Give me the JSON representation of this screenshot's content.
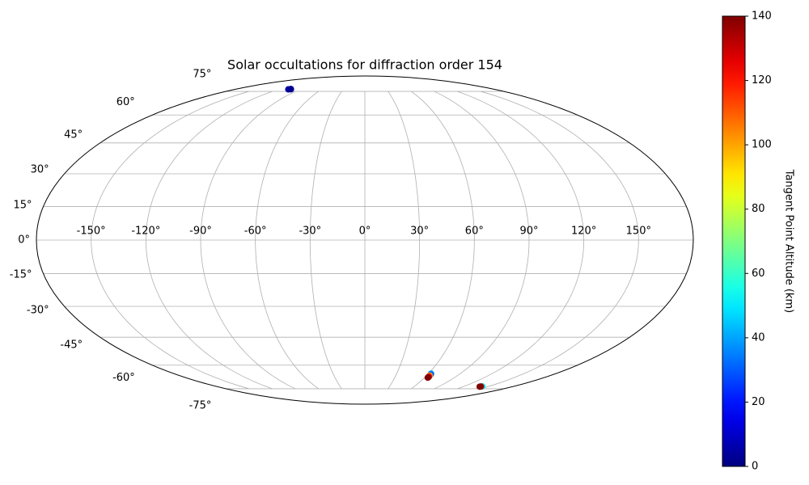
{
  "chart_data": {
    "type": "scatter",
    "projection": "mollweide",
    "title": "Solar occultations for diffraction order 154",
    "x": [
      -106,
      -104,
      -103,
      62.5,
      62.8,
      63,
      63.3,
      63.5,
      63.2,
      142,
      141,
      140
    ],
    "y": [
      76.5,
      76.8,
      76.6,
      -65,
      -65.5,
      -66.2,
      -66.8,
      -67.2,
      -67.5,
      -73.3,
      -73.4,
      -73.5
    ],
    "c": [
      5,
      10,
      2,
      40,
      30,
      100,
      120,
      135,
      140,
      50,
      135,
      140
    ],
    "colormap": "jet",
    "clim": [
      0,
      140
    ],
    "cticks": [
      0,
      20,
      40,
      60,
      80,
      100,
      120,
      140
    ],
    "colorbar_label": "Tangent Point Altitude (km)",
    "xlim": [
      -180,
      180
    ],
    "ylim": [
      -90,
      90
    ],
    "xticks": [
      {
        "value": -150,
        "label": "-150°"
      },
      {
        "value": -120,
        "label": "-120°"
      },
      {
        "value": -90,
        "label": "-90°"
      },
      {
        "value": -60,
        "label": "-60°"
      },
      {
        "value": -30,
        "label": "-30°"
      },
      {
        "value": 0,
        "label": "0°"
      },
      {
        "value": 30,
        "label": "30°"
      },
      {
        "value": 60,
        "label": "60°"
      },
      {
        "value": 90,
        "label": "90°"
      },
      {
        "value": 120,
        "label": "120°"
      },
      {
        "value": 150,
        "label": "150°"
      }
    ],
    "yticks": [
      {
        "value": -75,
        "label": "-75°"
      },
      {
        "value": -60,
        "label": "-60°"
      },
      {
        "value": -45,
        "label": "-45°"
      },
      {
        "value": -30,
        "label": "-30°"
      },
      {
        "value": -15,
        "label": "-15°"
      },
      {
        "value": 0,
        "label": "0°"
      },
      {
        "value": 15,
        "label": "15°"
      },
      {
        "value": 30,
        "label": "30°"
      },
      {
        "value": 45,
        "label": "45°"
      },
      {
        "value": 60,
        "label": "60°"
      },
      {
        "value": 75,
        "label": "75°"
      }
    ],
    "grid": true
  }
}
